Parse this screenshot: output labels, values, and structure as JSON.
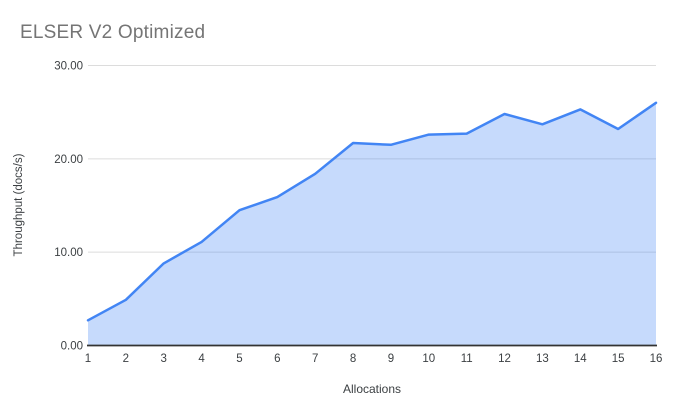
{
  "chart_data": {
    "type": "area",
    "title": "ELSER V2 Optimized",
    "xlabel": "Allocations",
    "ylabel": "Throughput (docs/s)",
    "categories": [
      "1",
      "2",
      "3",
      "4",
      "5",
      "6",
      "7",
      "8",
      "9",
      "10",
      "11",
      "12",
      "13",
      "14",
      "15",
      "16"
    ],
    "values": [
      2.7,
      4.9,
      8.8,
      11.1,
      14.5,
      15.9,
      18.4,
      21.7,
      21.5,
      22.6,
      22.7,
      24.8,
      23.7,
      25.3,
      23.2,
      26.0
    ],
    "series_name": "Throughput (docs/s)",
    "ylim": [
      0,
      30
    ],
    "y_ticks": [
      0,
      10,
      20,
      30
    ],
    "y_tick_labels": [
      "0.00",
      "10.00",
      "20.00",
      "30.00"
    ],
    "grid": true,
    "legend": "none",
    "colors": {
      "line": "#4285f4",
      "fill": "rgba(66,133,244,0.3)",
      "gridline": "#dcdcdc",
      "axis_line": "#333333",
      "tick_label": "#3c4043",
      "axis_title": "#3c4043",
      "title": "#757575",
      "background": "#ffffff"
    }
  }
}
